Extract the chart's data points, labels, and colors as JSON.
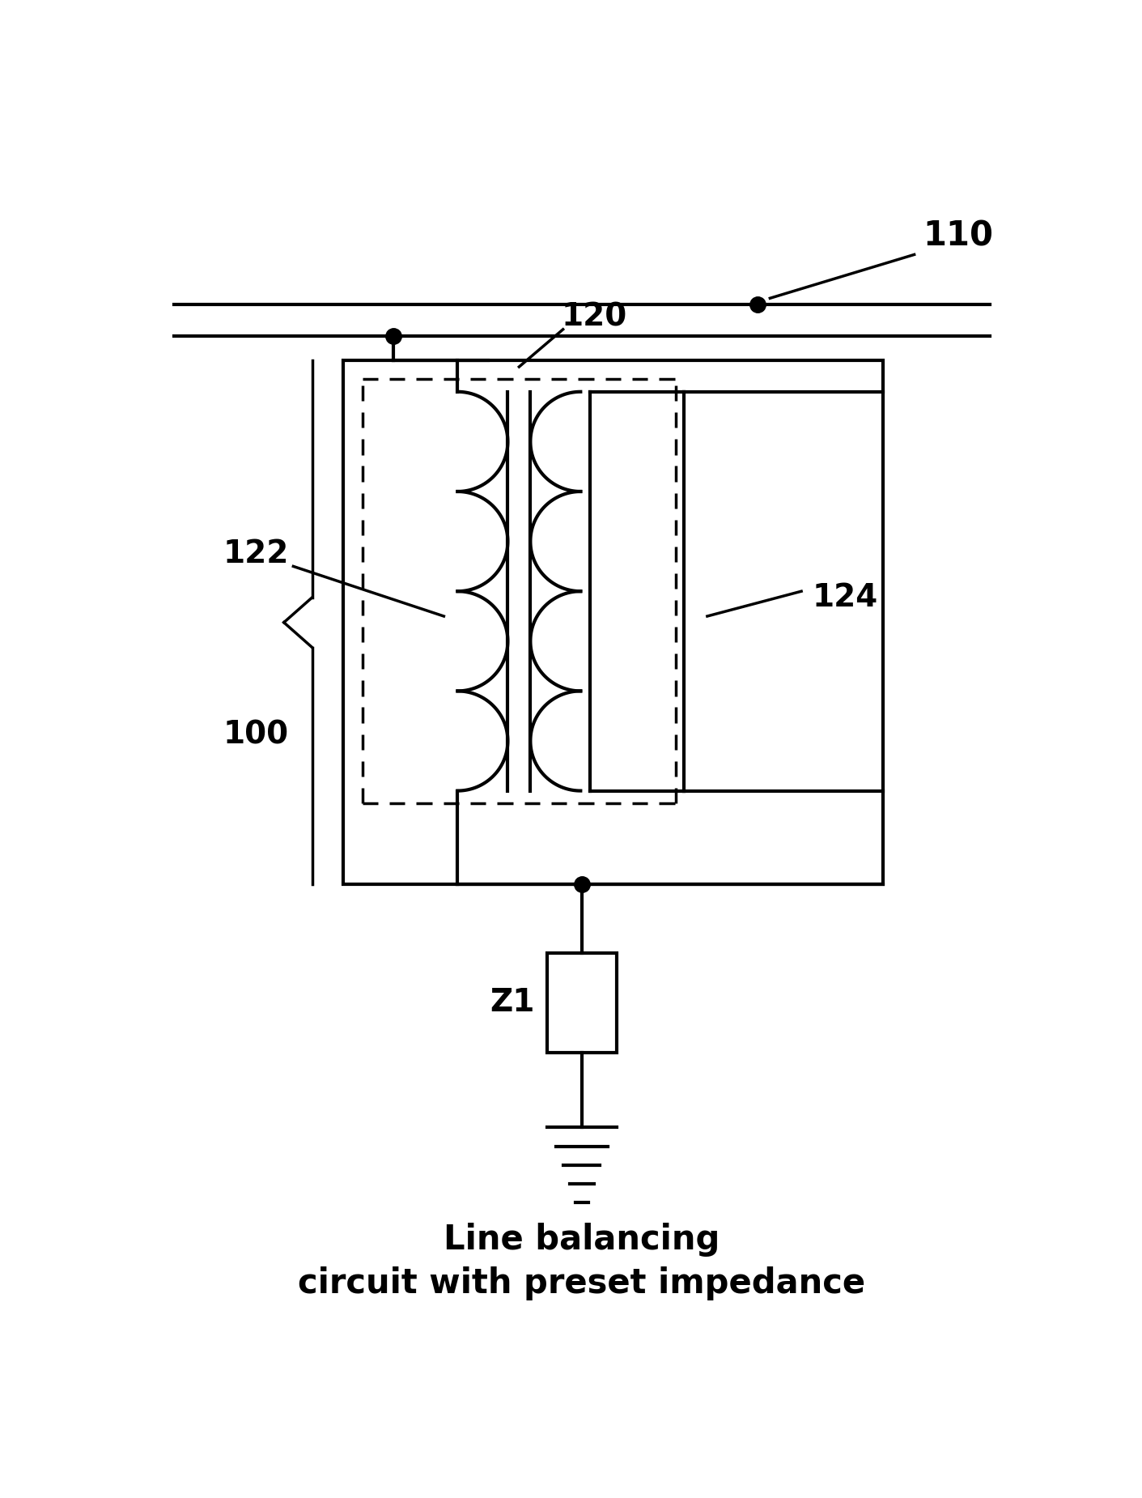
{
  "bg_color": "#ffffff",
  "line_color": "#000000",
  "label_110": "110",
  "label_120": "120",
  "label_122": "122",
  "label_124": "124",
  "label_100": "100",
  "label_Z1": "Z1",
  "title_line1": "Line balancing",
  "title_line2": "circuit with preset impedance"
}
